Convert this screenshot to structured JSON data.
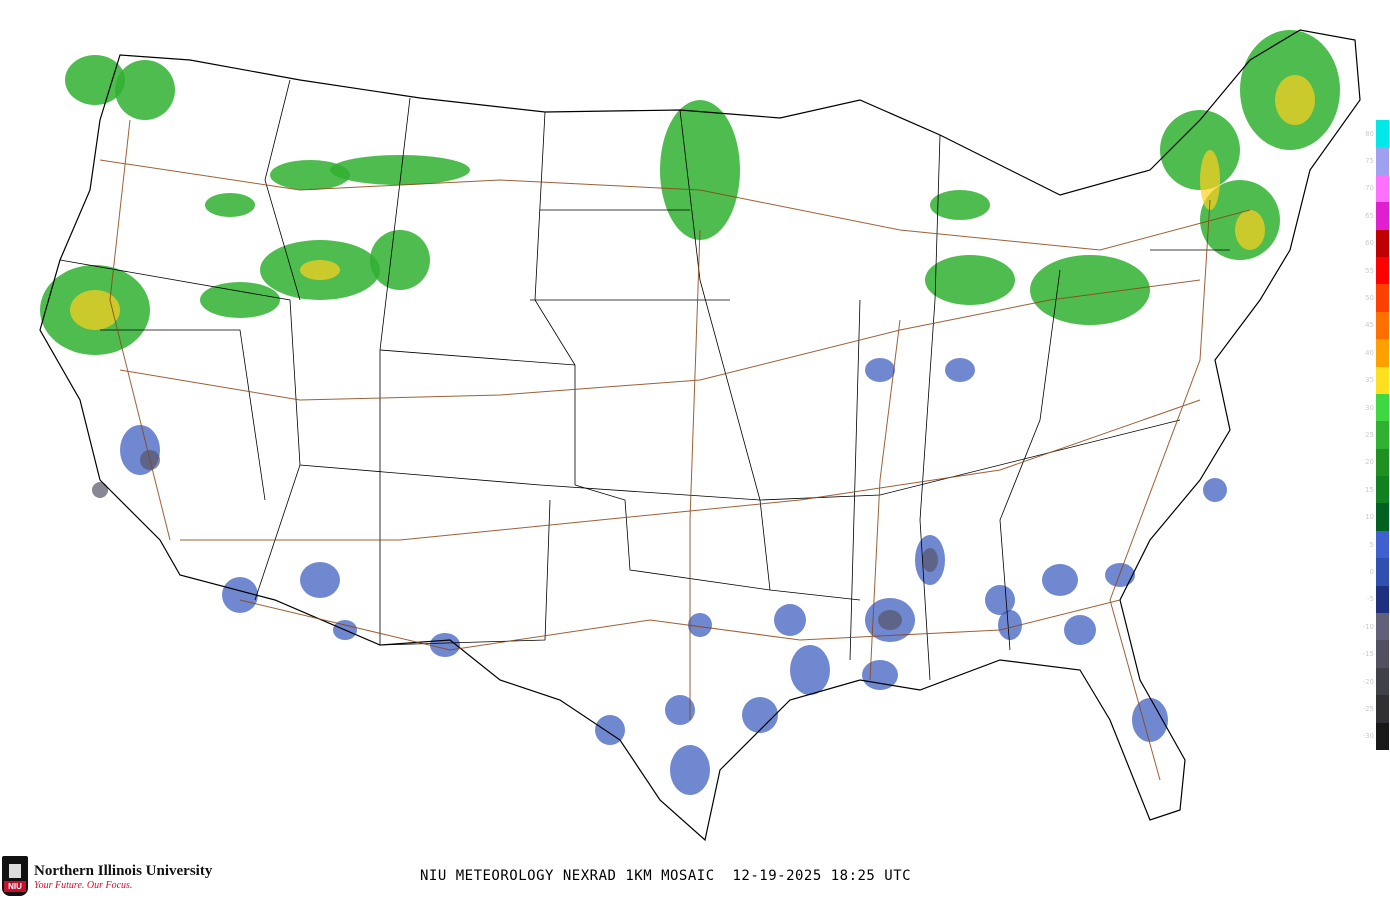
{
  "title": "NIU METEOROLOGY NEXRAD 1KM MOSAIC  12-19-2025 18:25 UTC",
  "logo": {
    "name": "Northern Illinois University",
    "tagline": "Your Future. Our Focus.",
    "badge": "NIU"
  },
  "legend": {
    "units": "dBZ",
    "labels": [
      "80",
      "75",
      "70",
      "65",
      "60",
      "55",
      "50",
      "45",
      "40",
      "35",
      "30",
      "25",
      "20",
      "15",
      "10",
      "5",
      "0",
      "-5",
      "-10",
      "-15",
      "-20",
      "-25",
      "-30"
    ],
    "colors": [
      "#00e8e8",
      "#a0a0f0",
      "#ff70ff",
      "#e020d0",
      "#c00000",
      "#ff0000",
      "#ff4000",
      "#ff7000",
      "#ffa000",
      "#ffe020",
      "#40d840",
      "#30b030",
      "#209020",
      "#108020",
      "#006020",
      "#4060d0",
      "#3050b0",
      "#203080",
      "#606078",
      "#505060",
      "#404048",
      "#303034",
      "#181818"
    ]
  },
  "map": {
    "region": "Contiguous United States",
    "layers": [
      "state-borders",
      "interstate-highways",
      "radar-reflectivity"
    ]
  }
}
